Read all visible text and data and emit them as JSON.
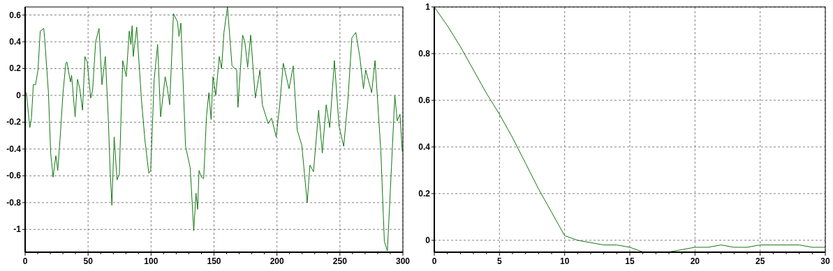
{
  "chart_data": [
    {
      "type": "line",
      "xlim": [
        0,
        300
      ],
      "ylim": [
        -1.17,
        0.66
      ],
      "xticks": [
        0,
        50,
        100,
        150,
        200,
        250,
        300
      ],
      "yticks": [
        -1,
        -0.8,
        -0.6,
        -0.4,
        -0.2,
        0,
        0.2,
        0.4,
        0.6
      ],
      "grid": true,
      "x": [
        0,
        1,
        3.7,
        5,
        6.5,
        8.3,
        10.2,
        12,
        14.8,
        15.7,
        18.5,
        20.3,
        22.2,
        24.4,
        25.9,
        27.7,
        30.1,
        32.3,
        33.2,
        36,
        36.9,
        39.7,
        41.6,
        43.4,
        45.6,
        47.5,
        49.3,
        52.1,
        53.6,
        56,
        58.7,
        61,
        63.7,
        66,
        67.4,
        68.9,
        70.7,
        73,
        74.8,
        77.5,
        80.3,
        82.7,
        84,
        85,
        85.9,
        88.6,
        92.3,
        95.1,
        98.2,
        99.7,
        102.5,
        105.2,
        107.6,
        111.2,
        113,
        114.8,
        117.8,
        121,
        122.2,
        123.7,
        127.4,
        131.1,
        133.9,
        135.7,
        137,
        138.1,
        140,
        141.8,
        144,
        145.9,
        147.7,
        149.2,
        151.4,
        154.2,
        156,
        157.9,
        160.7,
        164.3,
        168,
        169,
        172.7,
        174.5,
        176.7,
        179.1,
        182.8,
        186.5,
        188.4,
        193,
        195.7,
        199.4,
        202.2,
        205,
        209.6,
        212.9,
        216.1,
        219.7,
        224,
        226.2,
        229,
        233.1,
        236,
        239.1,
        241.9,
        245.6,
        249.3,
        253,
        256.3,
        259.5,
        262.6,
        265.9,
        268.7,
        270.5,
        275.2,
        277.9,
        282.5,
        285.3,
        287.7,
        290.9,
        293.6,
        295.5,
        297.7,
        299.5
      ],
      "series": [
        {
          "color": "#117711",
          "values": [
            0.02,
            0.02,
            -0.24,
            -0.17,
            0.08,
            0.08,
            0.19,
            0.48,
            0.5,
            0.4,
            0.02,
            -0.43,
            -0.61,
            -0.45,
            -0.56,
            -0.33,
            0.02,
            0.24,
            0.25,
            0.1,
            0.15,
            -0.16,
            0.12,
            0.05,
            -0.11,
            0.29,
            0.25,
            -0.02,
            0.04,
            0.4,
            0.5,
            0.08,
            0.29,
            -0.16,
            -0.54,
            -0.82,
            -0.31,
            -0.63,
            -0.59,
            0.26,
            0.14,
            0.48,
            0.38,
            0.52,
            0.29,
            0.51,
            -0.02,
            -0.33,
            -0.58,
            -0.56,
            0.12,
            0.38,
            -0.16,
            0.14,
            0.05,
            -0.07,
            0.61,
            0.55,
            0.44,
            0.54,
            -0.38,
            -0.54,
            -1.01,
            -0.73,
            -0.85,
            -0.56,
            -0.61,
            -0.62,
            -0.16,
            0.02,
            -0.18,
            0.14,
            0,
            0.29,
            0.2,
            0.47,
            0.66,
            0.22,
            0.19,
            -0.09,
            0.45,
            0.4,
            0.21,
            0.45,
            -0.02,
            0.19,
            -0.07,
            -0.21,
            -0.17,
            -0.31,
            -0.07,
            0.24,
            0.05,
            0.22,
            -0.26,
            -0.37,
            -0.8,
            -0.52,
            -0.57,
            -0.11,
            -0.43,
            -0.07,
            -0.24,
            0.26,
            -0.23,
            -0.38,
            -0.04,
            0.43,
            0.47,
            0.28,
            0.05,
            0.19,
            0.02,
            0.26,
            -0.42,
            -1.09,
            -1.16,
            -0.54,
            0,
            -0.19,
            -0.14,
            -0.42
          ]
        }
      ]
    },
    {
      "type": "line",
      "xlim": [
        0,
        30
      ],
      "ylim": [
        -0.051,
        1
      ],
      "xticks": [
        0,
        5,
        10,
        15,
        20,
        25,
        30
      ],
      "yticks": [
        0,
        0.2,
        0.4,
        0.6,
        0.8,
        1
      ],
      "grid": true,
      "x": [
        0,
        1,
        2,
        3,
        4,
        5,
        6,
        7,
        8,
        9,
        10,
        11,
        12,
        13,
        14,
        15,
        16,
        17,
        18,
        19,
        20,
        21,
        22,
        23,
        24,
        25,
        26,
        27,
        28,
        29,
        30
      ],
      "series": [
        {
          "color": "#117711",
          "values": [
            1,
            0.92,
            0.83,
            0.73,
            0.63,
            0.54,
            0.44,
            0.33,
            0.22,
            0.12,
            0.02,
            0,
            -0.01,
            -0.02,
            -0.02,
            -0.03,
            -0.05,
            -0.05,
            -0.05,
            -0.04,
            -0.03,
            -0.03,
            -0.02,
            -0.03,
            -0.03,
            -0.02,
            -0.02,
            -0.02,
            -0.02,
            -0.03,
            -0.03
          ]
        }
      ]
    }
  ]
}
